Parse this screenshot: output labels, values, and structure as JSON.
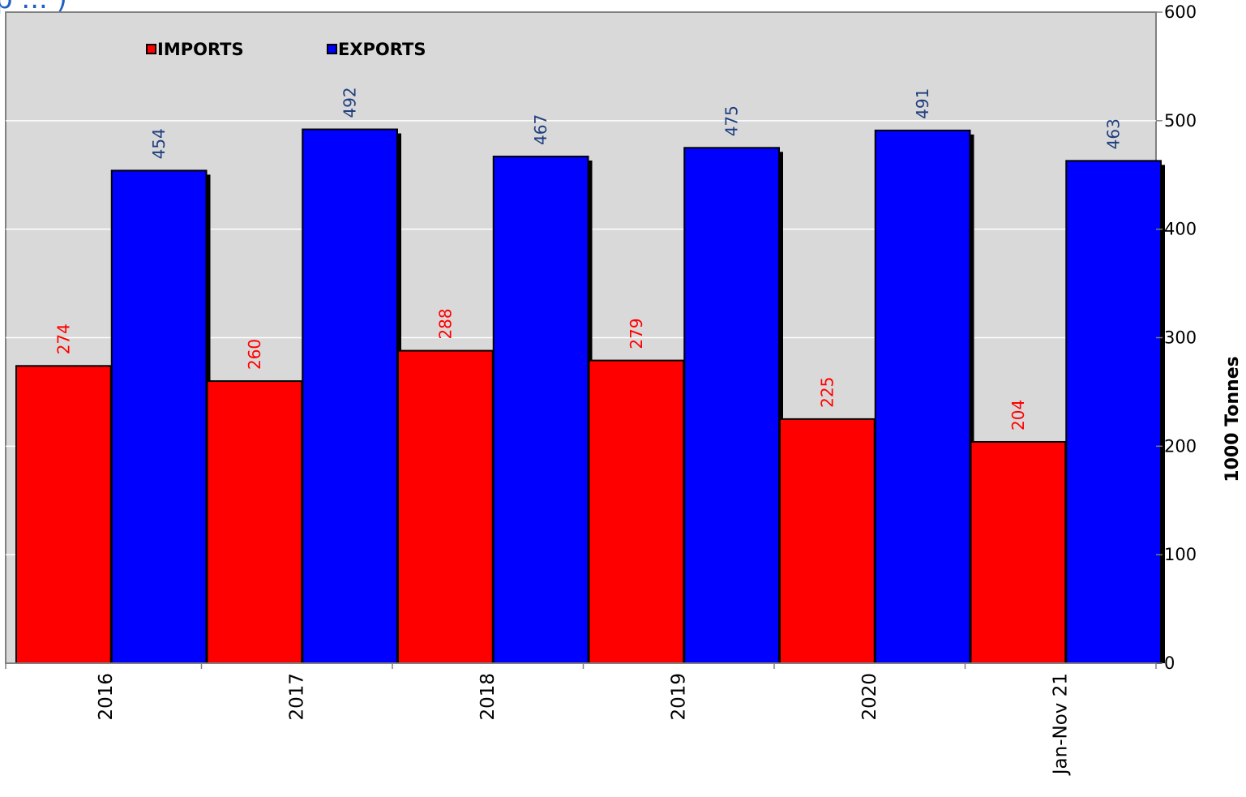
{
  "header": {
    "title_fragment": "p ... )"
  },
  "chart_data": {
    "type": "bar",
    "categories": [
      "2016",
      "2017",
      "2018",
      "2019",
      "2020",
      "Jan-Nov 21"
    ],
    "series": [
      {
        "name": "IMPORTS",
        "values": [
          274,
          260,
          288,
          279,
          225,
          204
        ],
        "color": "#ff0000",
        "label_color": "#ff0000"
      },
      {
        "name": "EXPORTS",
        "values": [
          454,
          492,
          467,
          475,
          491,
          463
        ],
        "color": "#0000ff",
        "label_color": "#1f3f7f"
      }
    ],
    "ylabel": "1000 Tonnes",
    "ylim": [
      0,
      600
    ],
    "yticks": [
      "0",
      "100",
      "200",
      "300",
      "400",
      "500",
      "600"
    ],
    "y_axis_side": "right",
    "grid": true,
    "legend_position": "top-left",
    "plot_background": "#d9d9d9",
    "title_color": "#1f5fbf"
  }
}
